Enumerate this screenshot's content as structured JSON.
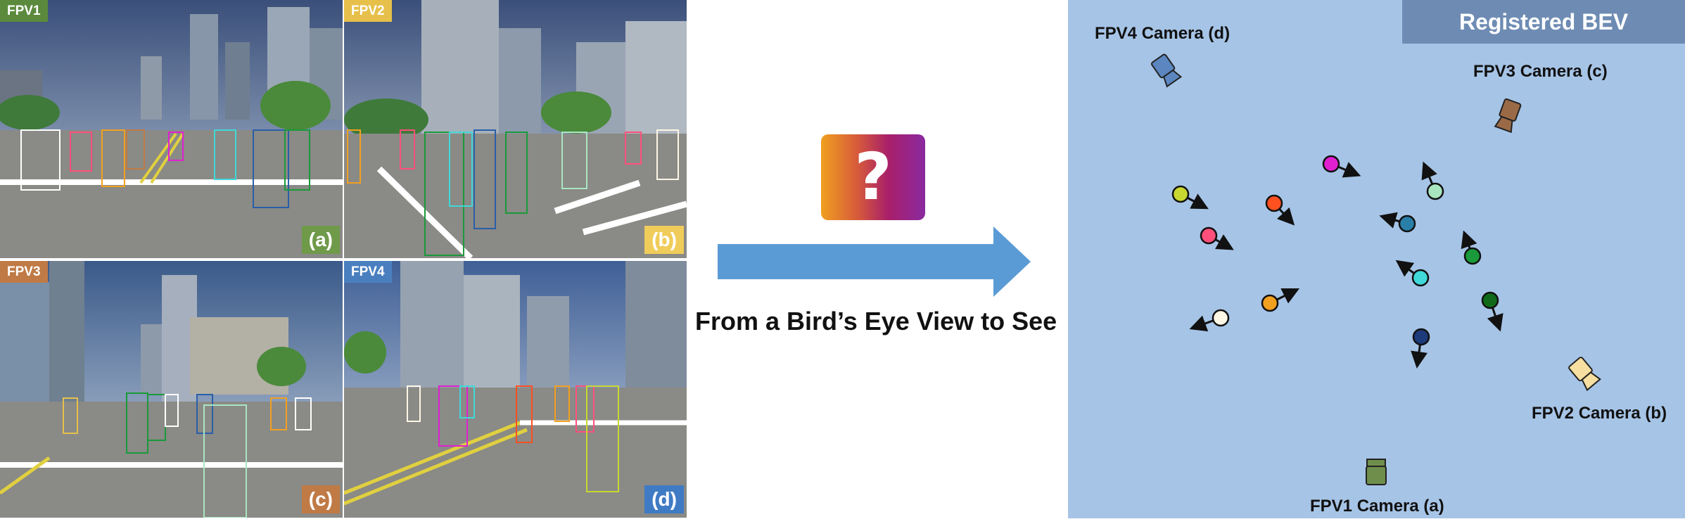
{
  "views": [
    {
      "label": "FPV1",
      "corner": "(a)",
      "color": "#5b8a3c",
      "corner_color": "#6f9a4a"
    },
    {
      "label": "FPV2",
      "corner": "(b)",
      "color": "#e6c04a",
      "corner_color": "#f0cc5a"
    },
    {
      "label": "FPV3",
      "corner": "(c)",
      "color": "#c07a45",
      "corner_color": "#c07a45"
    },
    {
      "label": "FPV4",
      "corner": "(d)",
      "color": "#4a7fbf",
      "corner_color": "#3f7bc4"
    }
  ],
  "middle": {
    "question_icon": "question-mark-icon",
    "caption": "From a Bird’s Eye View to See"
  },
  "bev": {
    "title": "Registered BEV",
    "cameras": [
      {
        "label": "FPV4 Camera (d)",
        "color": "#5b86c0"
      },
      {
        "label": "FPV3 Camera (c)",
        "color": "#9a6a46"
      },
      {
        "label": "FPV2 Camera (b)",
        "color": "#f6dfa0"
      },
      {
        "label": "FPV1 Camera (a)",
        "color": "#6f8e4c"
      }
    ],
    "pedestrian_colors": [
      "#e020d0",
      "#c8d830",
      "#ff5020",
      "#a8e6c0",
      "#ff4f7a",
      "#2a7fa8",
      "#1a9a3a",
      "#40d8d8",
      "#f2a020",
      "#fff7e6",
      "#0f6a1a",
      "#1d3a7a"
    ]
  }
}
